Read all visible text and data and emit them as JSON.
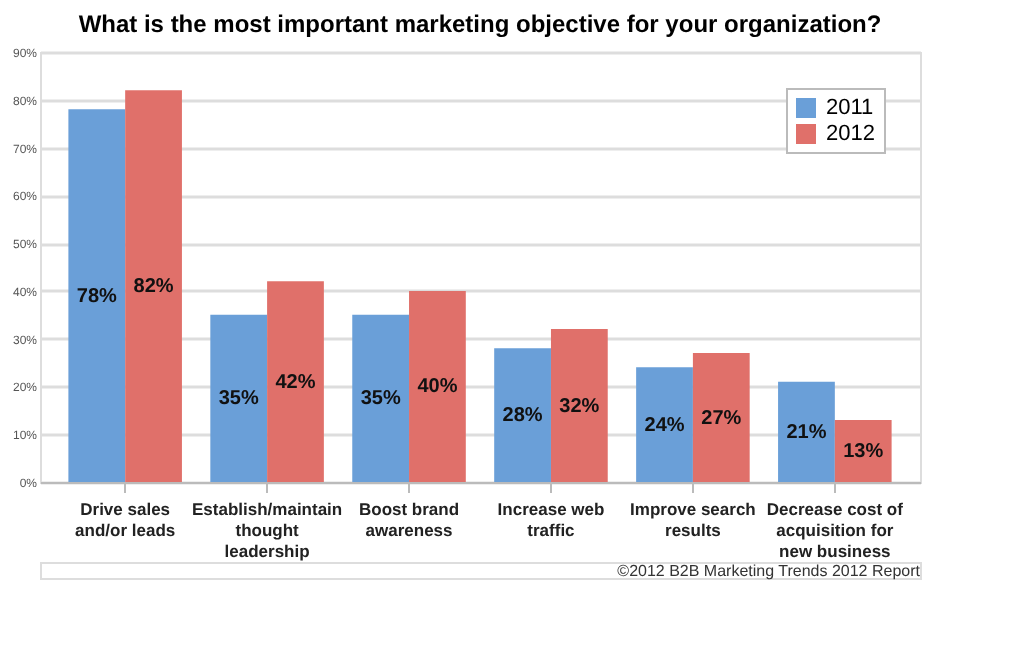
{
  "chart_data": {
    "type": "bar",
    "title": "What is the most important marketing objective for your organization?",
    "categories": [
      "Drive sales and/or leads",
      "Establish/maintain thought leadership",
      "Boost brand awareness",
      "Increase web traffic",
      "Improve search results",
      "Decrease cost of acquisition for new business"
    ],
    "series": [
      {
        "name": "2011",
        "color": "#6a9fd8",
        "values": [
          78,
          35,
          35,
          28,
          24,
          21
        ],
        "value_labels": [
          "78%",
          "35%",
          "35%",
          "28%",
          "24%",
          "21%"
        ]
      },
      {
        "name": "2012",
        "color": "#e0706a",
        "values": [
          82,
          42,
          40,
          32,
          27,
          13
        ],
        "value_labels": [
          "82%",
          "42%",
          "40%",
          "32%",
          "27%",
          "13%"
        ]
      }
    ],
    "ylim": [
      0,
      90
    ],
    "yticks": [
      {
        "value": 0,
        "label": "0%"
      },
      {
        "value": 10,
        "label": "10%"
      },
      {
        "value": 20,
        "label": "20%"
      },
      {
        "value": 30,
        "label": "30%"
      },
      {
        "value": 40,
        "label": "40%"
      },
      {
        "value": 50,
        "label": "50%"
      },
      {
        "value": 60,
        "label": "60%"
      },
      {
        "value": 70,
        "label": "70%"
      },
      {
        "value": 80,
        "label": "80%"
      },
      {
        "value": 90,
        "label": "90%"
      }
    ],
    "grid": "y",
    "legend": "top right",
    "annotations": [
      "©2012 B2B Marketing Trends 2012 Report"
    ]
  }
}
